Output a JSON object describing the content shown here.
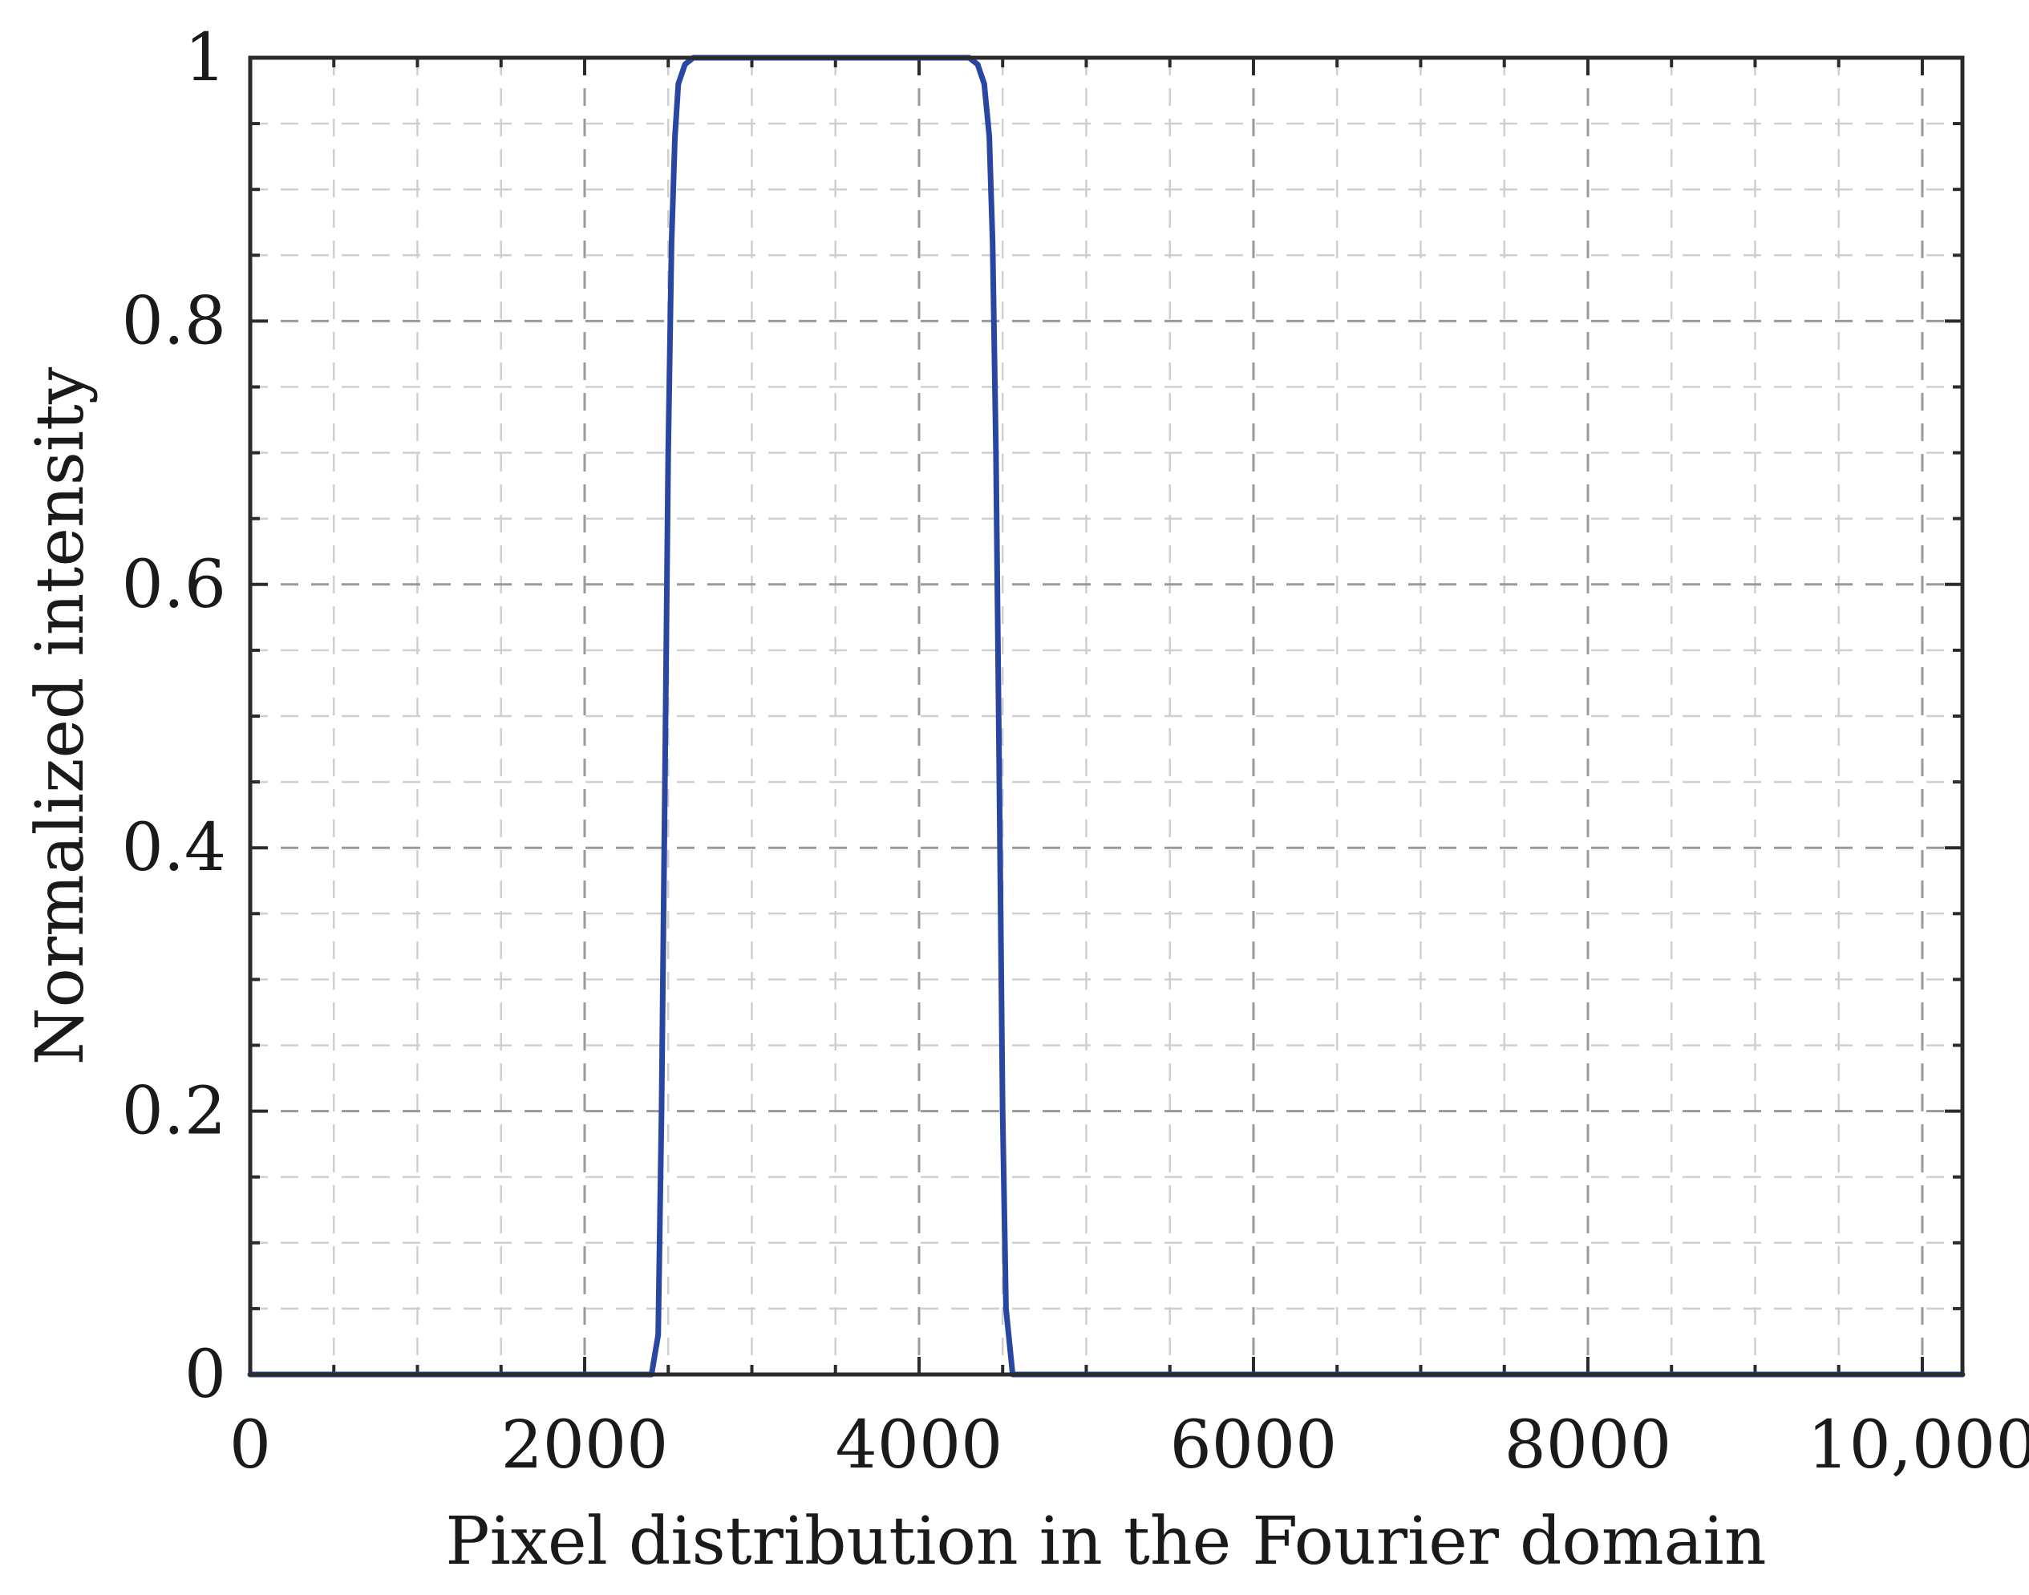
{
  "chart_data": {
    "type": "line",
    "title": "",
    "xlabel": "Pixel distribution in the Fourier domain",
    "ylabel": "Normalized intensity",
    "xlim": [
      0,
      10240
    ],
    "ylim": [
      0,
      1
    ],
    "x_ticks": [
      0,
      2000,
      4000,
      6000,
      8000,
      10000
    ],
    "x_tick_labels": [
      "0",
      "2000",
      "4000",
      "6000",
      "8000",
      "10,000"
    ],
    "y_ticks": [
      0,
      0.2,
      0.4,
      0.6,
      0.8,
      1
    ],
    "y_tick_labels": [
      "0",
      "0.2",
      "0.4",
      "0.6",
      "0.8",
      "1"
    ],
    "grid": true,
    "grid_style": "dashed",
    "series": [
      {
        "color": "#2a46a3",
        "x": [
          0,
          2400,
          2440,
          2460,
          2480,
          2500,
          2520,
          2540,
          2560,
          2600,
          2650,
          2700,
          4300,
          4350,
          4390,
          4420,
          4440,
          4460,
          4480,
          4500,
          4520,
          4560,
          10240
        ],
        "y": [
          0,
          0,
          0.03,
          0.2,
          0.45,
          0.7,
          0.86,
          0.94,
          0.98,
          0.995,
          1,
          1,
          1,
          0.995,
          0.98,
          0.94,
          0.86,
          0.7,
          0.45,
          0.2,
          0.05,
          0,
          0
        ]
      }
    ]
  }
}
